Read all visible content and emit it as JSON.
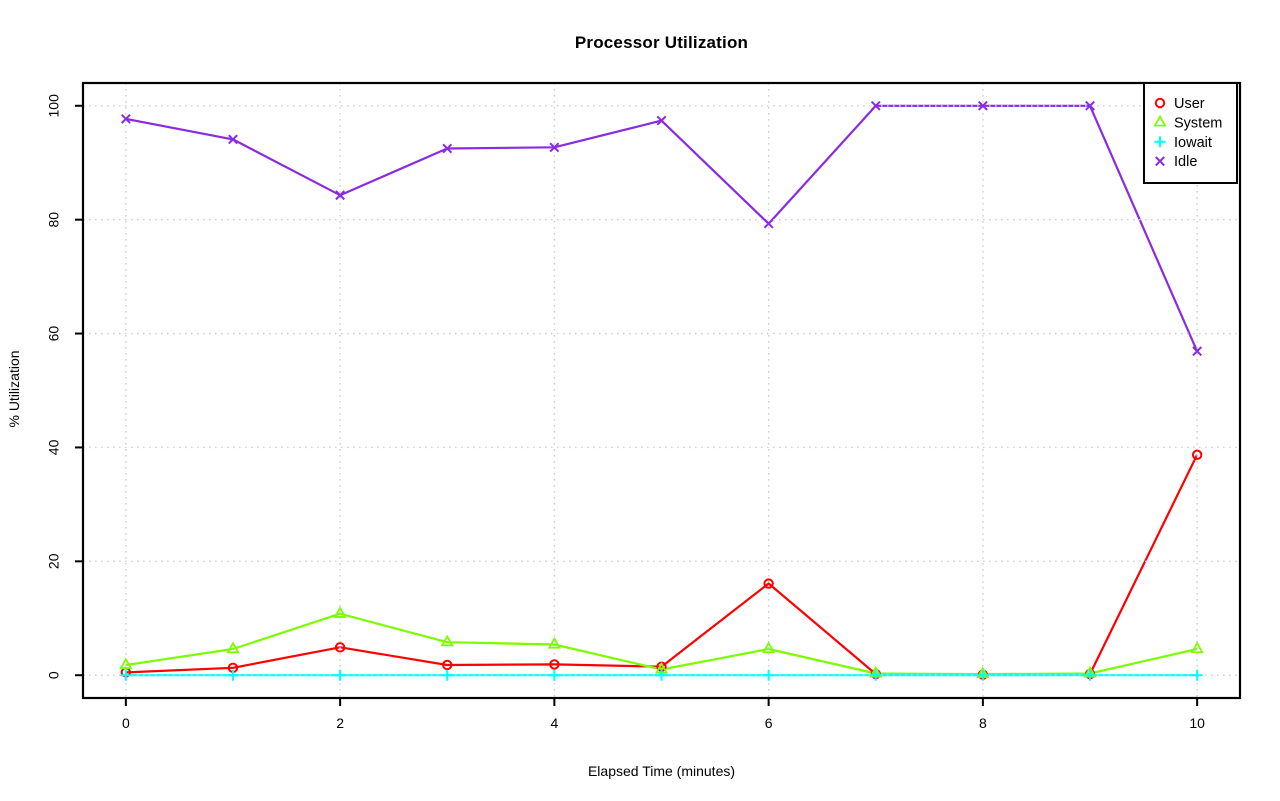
{
  "chart_data": {
    "type": "line",
    "title": "Processor Utilization",
    "xlabel": "Elapsed Time (minutes)",
    "ylabel": "% Utilization",
    "x": [
      0,
      1,
      2,
      3,
      4,
      5,
      6,
      7,
      8,
      9,
      10
    ],
    "series": [
      {
        "name": "User",
        "color": "#ff0000",
        "marker": "circle",
        "values": [
          0.5,
          1.3,
          4.9,
          1.8,
          1.9,
          1.5,
          16.1,
          0.2,
          0.1,
          0.2,
          38.7
        ]
      },
      {
        "name": "System",
        "color": "#7cfc00",
        "marker": "triangle",
        "values": [
          1.8,
          4.6,
          10.8,
          5.8,
          5.4,
          1.0,
          4.6,
          0.3,
          0.2,
          0.3,
          4.6
        ]
      },
      {
        "name": "Iowait",
        "color": "#00ffff",
        "marker": "plus",
        "values": [
          0,
          0,
          0,
          0,
          0,
          0,
          0,
          0,
          0,
          0,
          0
        ]
      },
      {
        "name": "Idle",
        "color": "#8a2be2",
        "marker": "x",
        "values": [
          97.7,
          94.1,
          84.3,
          92.5,
          92.7,
          97.4,
          79.3,
          100,
          100,
          100,
          56.9
        ]
      }
    ],
    "xticks": [
      0,
      2,
      4,
      6,
      8,
      10
    ],
    "yticks": [
      0,
      20,
      40,
      60,
      80,
      100
    ],
    "xlim": [
      -0.4,
      10.4
    ],
    "ylim": [
      -4,
      104
    ],
    "grid": true,
    "grid_style": "dotted",
    "grid_color": "#cfcfcf",
    "axis_color": "#000000",
    "background_color": "#ffffff",
    "legend_position": "top-right",
    "legend_entries": [
      "User",
      "System",
      "Iowait",
      "Idle"
    ]
  }
}
